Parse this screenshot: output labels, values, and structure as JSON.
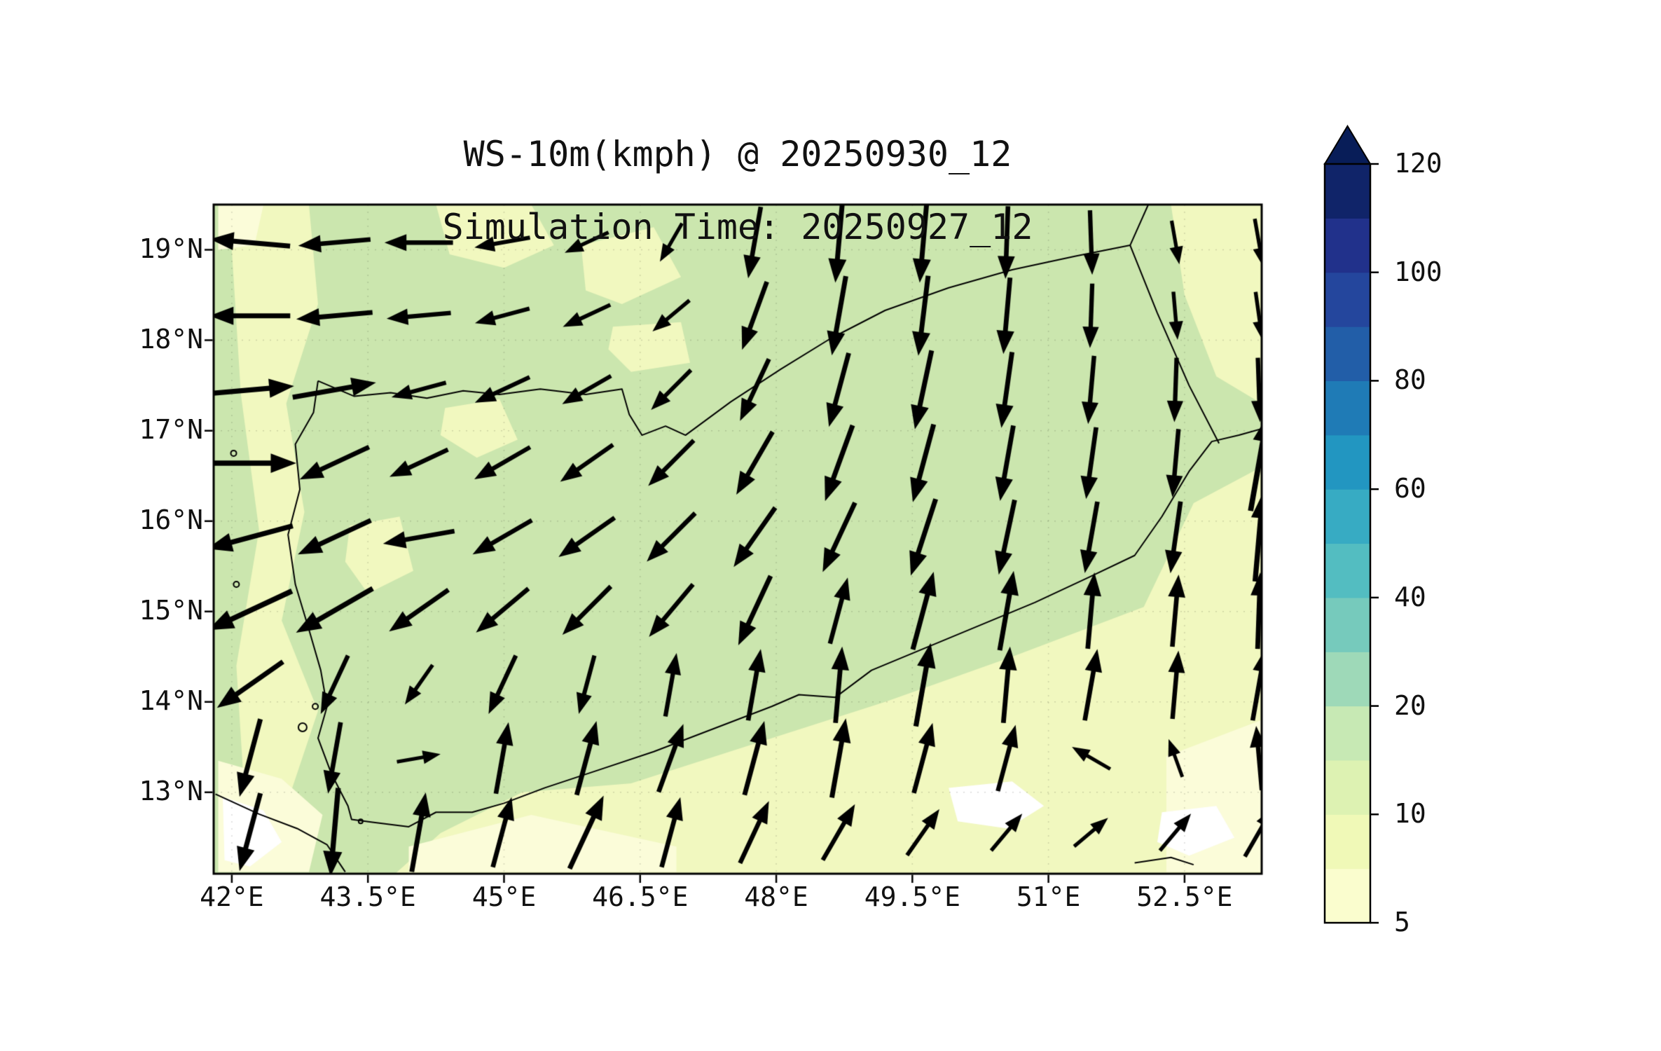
{
  "chart_data": {
    "type": "quiver_map",
    "title": "WS-10m(kmph) @ 20250930_12",
    "subtitle": "Simulation Time: 20250927_12",
    "lon_range": [
      41.8,
      53.35
    ],
    "lat_range": [
      12.1,
      19.5
    ],
    "x_ticks": {
      "values": [
        42,
        43.5,
        45,
        46.5,
        48,
        49.5,
        51,
        52.5
      ],
      "labels": [
        "42°E",
        "43.5°E",
        "45°E",
        "46.5°E",
        "48°E",
        "49.5°E",
        "51°E",
        "52.5°E"
      ]
    },
    "y_ticks": {
      "values": [
        13,
        14,
        15,
        16,
        17,
        18,
        19
      ],
      "labels": [
        "13°N",
        "14°N",
        "15°N",
        "16°N",
        "17°N",
        "18°N",
        "19°N"
      ]
    },
    "colors": {
      "base": "#cbe6ae",
      "shade_yellow": "#f1f8bf",
      "shade_cream": "#fbfcd9",
      "white": "#ffffff",
      "coast": "#000000",
      "arrow": "#000000",
      "grid": "rgba(0,0,0,0.14)"
    },
    "colorbar": {
      "tick_values": [
        5,
        10,
        20,
        40,
        60,
        80,
        100,
        120
      ],
      "tick_labels": [
        "5",
        "10",
        "20",
        "40",
        "60",
        "80",
        "100",
        "120"
      ],
      "segment_colors": [
        "#fafdce",
        "#f0f9b7",
        "#ddf2b2",
        "#c7e9b4",
        "#9ed9b8",
        "#76cabc",
        "#53bdc1",
        "#37abc3",
        "#2296c1",
        "#1f7bb6",
        "#225ea8",
        "#24469d",
        "#21318b",
        "#102469"
      ],
      "over_color": "#081d58"
    },
    "regions": [
      {
        "key": "shade_yellow",
        "pts": [
          [
            42.35,
            19.5
          ],
          [
            42.85,
            19.5
          ],
          [
            42.95,
            18.4
          ],
          [
            42.6,
            17.3
          ],
          [
            42.8,
            16.1
          ],
          [
            42.55,
            14.9
          ],
          [
            42.95,
            13.9
          ],
          [
            42.65,
            13.0
          ],
          [
            42.15,
            12.8
          ],
          [
            42.05,
            14.4
          ],
          [
            42.3,
            15.9
          ],
          [
            42.1,
            17.4
          ],
          [
            42.0,
            19.0
          ]
        ]
      },
      {
        "key": "shade_yellow",
        "pts": [
          [
            43.8,
            12.1
          ],
          [
            53.35,
            12.1
          ],
          [
            53.35,
            16.6
          ],
          [
            52.6,
            16.2
          ],
          [
            52.05,
            15.05
          ],
          [
            50.6,
            14.5
          ],
          [
            49.2,
            14.0
          ],
          [
            47.8,
            13.55
          ],
          [
            46.4,
            13.1
          ],
          [
            45.2,
            13.0
          ],
          [
            44.3,
            12.55
          ]
        ]
      },
      {
        "key": "shade_yellow",
        "pts": [
          [
            44.25,
            19.5
          ],
          [
            45.3,
            19.5
          ],
          [
            45.55,
            19.05
          ],
          [
            45.0,
            18.8
          ],
          [
            44.4,
            18.95
          ]
        ]
      },
      {
        "key": "shade_yellow",
        "pts": [
          [
            45.85,
            19.05
          ],
          [
            46.65,
            19.25
          ],
          [
            46.95,
            18.7
          ],
          [
            46.3,
            18.4
          ],
          [
            45.9,
            18.55
          ]
        ]
      },
      {
        "key": "shade_yellow",
        "pts": [
          [
            46.2,
            18.15
          ],
          [
            46.95,
            18.2
          ],
          [
            47.05,
            17.75
          ],
          [
            46.4,
            17.65
          ],
          [
            46.15,
            17.9
          ]
        ]
      },
      {
        "key": "shade_yellow",
        "pts": [
          [
            44.35,
            17.25
          ],
          [
            44.95,
            17.35
          ],
          [
            45.15,
            16.9
          ],
          [
            44.7,
            16.7
          ],
          [
            44.3,
            16.95
          ]
        ]
      },
      {
        "key": "shade_yellow",
        "pts": [
          [
            43.3,
            15.95
          ],
          [
            43.85,
            16.05
          ],
          [
            44.0,
            15.45
          ],
          [
            43.5,
            15.2
          ],
          [
            43.25,
            15.55
          ]
        ]
      },
      {
        "key": "shade_yellow",
        "pts": [
          [
            52.35,
            19.5
          ],
          [
            53.35,
            19.5
          ],
          [
            53.35,
            17.3
          ],
          [
            52.85,
            17.6
          ],
          [
            52.5,
            18.5
          ]
        ]
      },
      {
        "key": "shade_cream",
        "pts": [
          [
            41.85,
            13.35
          ],
          [
            42.55,
            13.15
          ],
          [
            43.0,
            12.75
          ],
          [
            42.85,
            12.12
          ],
          [
            41.85,
            12.12
          ]
        ]
      },
      {
        "key": "shade_cream",
        "pts": [
          [
            43.95,
            12.4
          ],
          [
            45.3,
            12.75
          ],
          [
            46.9,
            12.4
          ],
          [
            46.9,
            12.12
          ],
          [
            43.95,
            12.12
          ]
        ]
      },
      {
        "key": "shade_cream",
        "pts": [
          [
            52.3,
            13.4
          ],
          [
            53.35,
            13.8
          ],
          [
            53.35,
            12.12
          ],
          [
            52.3,
            12.12
          ]
        ]
      },
      {
        "key": "shade_cream",
        "pts": [
          [
            41.85,
            19.5
          ],
          [
            42.35,
            19.5
          ],
          [
            42.25,
            19.05
          ],
          [
            41.85,
            19.0
          ]
        ]
      },
      {
        "key": "white",
        "pts": [
          [
            41.9,
            12.95
          ],
          [
            42.35,
            12.8
          ],
          [
            42.55,
            12.45
          ],
          [
            42.2,
            12.18
          ],
          [
            41.92,
            12.25
          ]
        ]
      },
      {
        "key": "white",
        "pts": [
          [
            49.9,
            13.05
          ],
          [
            50.6,
            13.12
          ],
          [
            50.95,
            12.85
          ],
          [
            50.55,
            12.6
          ],
          [
            50.0,
            12.68
          ]
        ]
      },
      {
        "key": "white",
        "pts": [
          [
            52.25,
            12.78
          ],
          [
            52.85,
            12.85
          ],
          [
            53.05,
            12.5
          ],
          [
            52.55,
            12.3
          ],
          [
            52.2,
            12.45
          ]
        ]
      }
    ],
    "coastlines": [
      [
        [
          42.95,
          17.55
        ],
        [
          42.9,
          17.2
        ],
        [
          42.7,
          16.85
        ],
        [
          42.75,
          16.35
        ],
        [
          42.62,
          15.85
        ],
        [
          42.7,
          15.3
        ],
        [
          42.85,
          14.8
        ],
        [
          42.98,
          14.35
        ],
        [
          43.05,
          13.95
        ],
        [
          42.95,
          13.6
        ],
        [
          43.1,
          13.2
        ],
        [
          43.28,
          12.85
        ],
        [
          43.32,
          12.7
        ],
        [
          43.55,
          12.67
        ],
        [
          43.95,
          12.62
        ],
        [
          44.25,
          12.78
        ],
        [
          44.65,
          12.78
        ],
        [
          45.0,
          12.88
        ],
        [
          45.45,
          13.05
        ],
        [
          46.05,
          13.25
        ],
        [
          46.65,
          13.45
        ],
        [
          47.3,
          13.7
        ],
        [
          47.95,
          13.95
        ],
        [
          48.25,
          14.08
        ],
        [
          48.65,
          14.05
        ],
        [
          49.05,
          14.35
        ],
        [
          49.65,
          14.6
        ],
        [
          50.25,
          14.85
        ],
        [
          50.85,
          15.1
        ],
        [
          51.45,
          15.38
        ],
        [
          51.95,
          15.62
        ],
        [
          52.25,
          16.05
        ],
        [
          52.55,
          16.55
        ],
        [
          52.8,
          16.88
        ],
        [
          53.1,
          16.95
        ],
        [
          53.35,
          17.02
        ]
      ],
      [
        [
          42.95,
          17.55
        ],
        [
          43.35,
          17.38
        ],
        [
          43.75,
          17.42
        ],
        [
          44.15,
          17.36
        ],
        [
          44.55,
          17.44
        ],
        [
          44.95,
          17.4
        ],
        [
          45.4,
          17.46
        ],
        [
          45.9,
          17.4
        ],
        [
          46.3,
          17.46
        ],
        [
          46.38,
          17.18
        ],
        [
          46.52,
          16.95
        ],
        [
          46.78,
          17.05
        ],
        [
          47.0,
          16.95
        ],
        [
          47.5,
          17.32
        ],
        [
          48.05,
          17.68
        ],
        [
          48.6,
          18.02
        ],
        [
          49.2,
          18.33
        ],
        [
          49.9,
          18.58
        ],
        [
          50.6,
          18.78
        ],
        [
          51.3,
          18.93
        ],
        [
          51.9,
          19.05
        ]
      ],
      [
        [
          51.9,
          19.05
        ],
        [
          52.2,
          18.3
        ],
        [
          52.55,
          17.5
        ],
        [
          52.88,
          16.86
        ]
      ],
      [
        [
          51.9,
          19.05
        ],
        [
          52.1,
          19.5
        ]
      ],
      [
        [
          41.82,
          12.98
        ],
        [
          42.3,
          12.76
        ],
        [
          42.72,
          12.6
        ],
        [
          43.05,
          12.42
        ],
        [
          43.25,
          12.12
        ]
      ],
      [
        [
          51.95,
          12.22
        ],
        [
          52.35,
          12.28
        ],
        [
          52.6,
          12.2
        ]
      ]
    ],
    "islands": [
      [
        42.78,
        13.72,
        6
      ],
      [
        42.92,
        13.95,
        4
      ],
      [
        43.42,
        12.68,
        3
      ],
      [
        42.05,
        15.3,
        4
      ],
      [
        42.02,
        16.75,
        4
      ]
    ],
    "arrows": {
      "angle_convention": "degrees CCW from east (90 = northward)",
      "lons": [
        42.2,
        43.13,
        44.06,
        44.98,
        45.91,
        46.84,
        47.76,
        48.69,
        49.62,
        50.54,
        51.47,
        52.4,
        53.32
      ],
      "lats": [
        19.08,
        18.27,
        17.45,
        16.64,
        15.82,
        15.01,
        14.19,
        13.38,
        12.56
      ],
      "angles": [
        [
          175,
          185,
          180,
          190,
          205,
          240,
          260,
          265,
          265,
          268,
          272,
          280,
          280
        ],
        [
          180,
          185,
          185,
          195,
          205,
          220,
          250,
          260,
          263,
          265,
          268,
          275,
          278
        ],
        [
          5,
          10,
          195,
          205,
          210,
          225,
          245,
          255,
          258,
          262,
          265,
          268,
          272
        ],
        [
          0,
          205,
          205,
          210,
          215,
          225,
          240,
          250,
          255,
          260,
          262,
          265,
          80
        ],
        [
          195,
          205,
          190,
          210,
          215,
          225,
          235,
          245,
          252,
          258,
          260,
          262,
          85
        ],
        [
          205,
          210,
          215,
          220,
          225,
          230,
          245,
          75,
          75,
          80,
          85,
          85,
          88
        ],
        [
          215,
          245,
          235,
          245,
          255,
          80,
          80,
          85,
          80,
          85,
          80,
          85,
          80
        ],
        [
          255,
          260,
          10,
          80,
          75,
          70,
          75,
          80,
          75,
          75,
          150,
          110,
          95
        ],
        [
          255,
          265,
          80,
          75,
          65,
          75,
          65,
          60,
          55,
          50,
          40,
          50,
          60
        ]
      ],
      "mags": [
        [
          1.0,
          0.9,
          0.85,
          0.7,
          0.6,
          0.55,
          0.9,
          1.0,
          1.0,
          0.9,
          0.8,
          0.55,
          0.6
        ],
        [
          1.0,
          0.95,
          0.8,
          0.7,
          0.65,
          0.6,
          0.9,
          1.0,
          1.0,
          0.95,
          0.8,
          0.6,
          0.6
        ],
        [
          1.1,
          1.05,
          0.7,
          0.75,
          0.7,
          0.7,
          0.85,
          0.95,
          1.0,
          0.95,
          0.85,
          0.8,
          0.8
        ],
        [
          1.15,
          0.95,
          0.8,
          0.8,
          0.8,
          0.8,
          0.9,
          1.0,
          1.0,
          0.95,
          0.9,
          0.85,
          1.2
        ],
        [
          1.1,
          1.0,
          0.9,
          0.85,
          0.85,
          0.85,
          0.9,
          0.95,
          1.0,
          0.95,
          0.9,
          0.9,
          1.1
        ],
        [
          1.15,
          1.1,
          0.9,
          0.85,
          0.85,
          0.85,
          0.95,
          0.85,
          1.0,
          1.0,
          0.95,
          0.9,
          0.95
        ],
        [
          1.0,
          0.8,
          0.6,
          0.8,
          0.75,
          0.8,
          0.9,
          0.95,
          1.05,
          0.95,
          0.9,
          0.85,
          0.9
        ],
        [
          1.0,
          0.9,
          0.55,
          0.9,
          0.95,
          0.9,
          0.95,
          1.0,
          0.9,
          0.85,
          0.55,
          0.5,
          0.8
        ],
        [
          1.0,
          1.1,
          1.0,
          0.9,
          1.0,
          0.9,
          0.85,
          0.8,
          0.7,
          0.6,
          0.55,
          0.6,
          0.7
        ]
      ]
    }
  }
}
